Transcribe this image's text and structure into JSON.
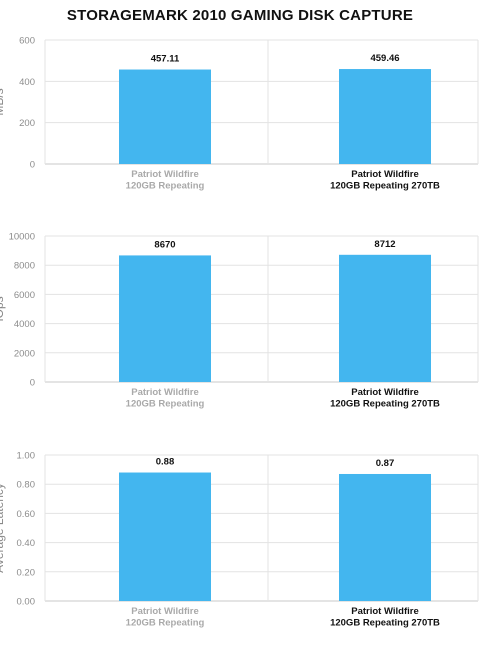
{
  "page_title": "STORAGEMARK 2010 GAMING DISK CAPTURE",
  "colors": {
    "bar": "#43b6ef",
    "grid": "#e3e3e3",
    "axis": "#c9c9c9"
  },
  "chart_data": [
    {
      "type": "bar",
      "ylabel": "MB/s",
      "ylim": [
        0,
        600
      ],
      "yticks": [
        "0",
        "200",
        "400",
        "600"
      ],
      "categories": [
        [
          "Patriot Wildfire",
          "120GB Repeating"
        ],
        [
          "Patriot Wildfire",
          "120GB Repeating 270TB"
        ]
      ],
      "values": [
        457.11,
        459.46
      ],
      "value_labels": [
        "457.11",
        "459.46"
      ],
      "grid": true
    },
    {
      "type": "bar",
      "ylabel": "IOps",
      "ylim": [
        0,
        10000
      ],
      "yticks": [
        "0",
        "2000",
        "4000",
        "6000",
        "8000",
        "10000"
      ],
      "categories": [
        [
          "Patriot Wildfire",
          "120GB Repeating"
        ],
        [
          "Patriot Wildfire",
          "120GB Repeating 270TB"
        ]
      ],
      "values": [
        8670,
        8712
      ],
      "value_labels": [
        "8670",
        "8712"
      ],
      "grid": true
    },
    {
      "type": "bar",
      "ylabel": "Average Latency",
      "ylim": [
        0,
        1
      ],
      "yticks": [
        "0.00",
        "0.20",
        "0.40",
        "0.60",
        "0.80",
        "1.00"
      ],
      "categories": [
        [
          "Patriot Wildfire",
          "120GB Repeating"
        ],
        [
          "Patriot Wildfire",
          "120GB Repeating 270TB"
        ]
      ],
      "values": [
        0.88,
        0.87
      ],
      "value_labels": [
        "0.88",
        "0.87"
      ],
      "grid": true
    }
  ]
}
